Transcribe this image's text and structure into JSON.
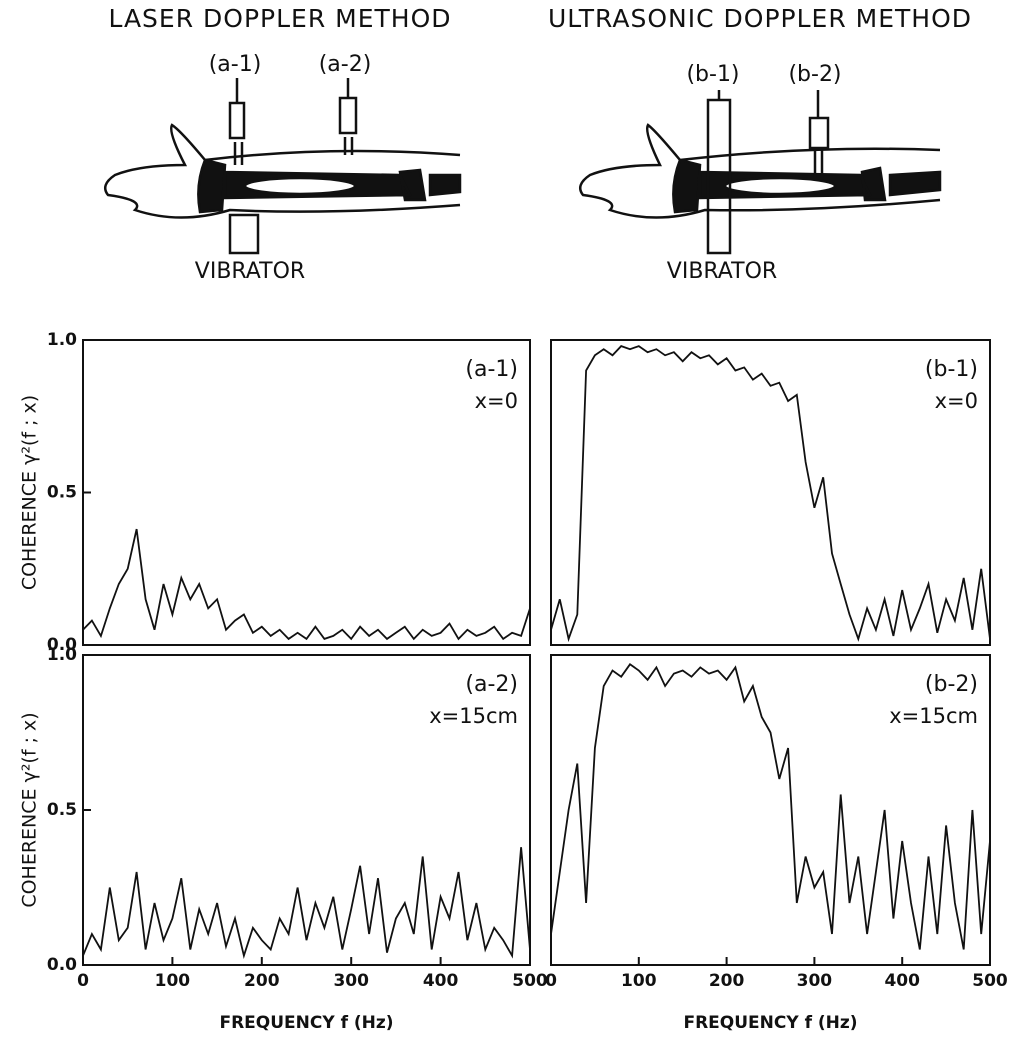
{
  "header": {
    "left_title": "LASER DOPPLER METHOD",
    "right_title": "ULTRASONIC DOPPLER METHOD",
    "left_probes": [
      "(a-1)",
      "(a-2)"
    ],
    "right_probes": [
      "(b-1)",
      "(b-2)"
    ],
    "left_vibrator": "VIBRATOR",
    "right_vibrator": "VIBRATOR"
  },
  "chart_data": [
    {
      "type": "line",
      "label": "(a-1)",
      "annotation": "x=0",
      "ylabel": "COHERENCE  γ²(f ; x)",
      "color": "#111111",
      "xlim": [
        0,
        500
      ],
      "ylim": [
        0,
        1
      ],
      "yticks": [
        {
          "value": 0,
          "label": "0.0"
        },
        {
          "value": 0.5,
          "label": "0.5"
        },
        {
          "value": 1,
          "label": "1.0"
        }
      ],
      "x": [
        0,
        10,
        20,
        30,
        40,
        50,
        60,
        70,
        80,
        90,
        100,
        110,
        120,
        130,
        140,
        150,
        160,
        170,
        180,
        190,
        200,
        210,
        220,
        230,
        240,
        250,
        260,
        270,
        280,
        290,
        300,
        310,
        320,
        330,
        340,
        350,
        360,
        370,
        380,
        390,
        400,
        410,
        420,
        430,
        440,
        450,
        460,
        470,
        480,
        490,
        500
      ],
      "values": [
        0.05,
        0.08,
        0.03,
        0.12,
        0.2,
        0.25,
        0.38,
        0.15,
        0.05,
        0.2,
        0.1,
        0.22,
        0.15,
        0.2,
        0.12,
        0.15,
        0.05,
        0.08,
        0.1,
        0.04,
        0.06,
        0.03,
        0.05,
        0.02,
        0.04,
        0.02,
        0.06,
        0.02,
        0.03,
        0.05,
        0.02,
        0.06,
        0.03,
        0.05,
        0.02,
        0.04,
        0.06,
        0.02,
        0.05,
        0.03,
        0.04,
        0.07,
        0.02,
        0.05,
        0.03,
        0.04,
        0.06,
        0.02,
        0.04,
        0.03,
        0.12
      ]
    },
    {
      "type": "line",
      "label": "(b-1)",
      "annotation": "x=0",
      "color": "#111111",
      "xlim": [
        0,
        500
      ],
      "ylim": [
        0,
        1
      ],
      "x": [
        0,
        10,
        20,
        30,
        40,
        50,
        60,
        70,
        80,
        90,
        100,
        110,
        120,
        130,
        140,
        150,
        160,
        170,
        180,
        190,
        200,
        210,
        220,
        230,
        240,
        250,
        260,
        270,
        280,
        290,
        300,
        310,
        320,
        330,
        340,
        350,
        360,
        370,
        380,
        390,
        400,
        410,
        420,
        430,
        440,
        450,
        460,
        470,
        480,
        490,
        500
      ],
      "values": [
        0.05,
        0.15,
        0.02,
        0.1,
        0.9,
        0.95,
        0.97,
        0.95,
        0.98,
        0.97,
        0.98,
        0.96,
        0.97,
        0.95,
        0.96,
        0.93,
        0.96,
        0.94,
        0.95,
        0.92,
        0.94,
        0.9,
        0.91,
        0.87,
        0.89,
        0.85,
        0.86,
        0.8,
        0.82,
        0.6,
        0.45,
        0.55,
        0.3,
        0.2,
        0.1,
        0.02,
        0.12,
        0.05,
        0.15,
        0.03,
        0.18,
        0.05,
        0.12,
        0.2,
        0.04,
        0.15,
        0.08,
        0.22,
        0.05,
        0.25,
        0.02
      ]
    },
    {
      "type": "line",
      "label": "(a-2)",
      "annotation": "x=15cm",
      "ylabel": "COHERENCE  γ²(f ; x)",
      "xlabel": "FREQUENCY f (Hz)",
      "color": "#111111",
      "xlim": [
        0,
        500
      ],
      "ylim": [
        0,
        1
      ],
      "yticks": [
        {
          "value": 0,
          "label": "0.0"
        },
        {
          "value": 0.5,
          "label": "0.5"
        },
        {
          "value": 1,
          "label": "1.0"
        }
      ],
      "xticks": [
        0,
        100,
        200,
        300,
        400,
        500
      ],
      "x": [
        0,
        10,
        20,
        30,
        40,
        50,
        60,
        70,
        80,
        90,
        100,
        110,
        120,
        130,
        140,
        150,
        160,
        170,
        180,
        190,
        200,
        210,
        220,
        230,
        240,
        250,
        260,
        270,
        280,
        290,
        300,
        310,
        320,
        330,
        340,
        350,
        360,
        370,
        380,
        390,
        400,
        410,
        420,
        430,
        440,
        450,
        460,
        470,
        480,
        490,
        500
      ],
      "values": [
        0.03,
        0.1,
        0.05,
        0.25,
        0.08,
        0.12,
        0.3,
        0.05,
        0.2,
        0.08,
        0.15,
        0.28,
        0.05,
        0.18,
        0.1,
        0.2,
        0.06,
        0.15,
        0.03,
        0.12,
        0.08,
        0.05,
        0.15,
        0.1,
        0.25,
        0.08,
        0.2,
        0.12,
        0.22,
        0.05,
        0.18,
        0.32,
        0.1,
        0.28,
        0.04,
        0.15,
        0.2,
        0.1,
        0.35,
        0.05,
        0.22,
        0.15,
        0.3,
        0.08,
        0.2,
        0.05,
        0.12,
        0.08,
        0.03,
        0.38,
        0.05
      ]
    },
    {
      "type": "line",
      "label": "(b-2)",
      "annotation": "x=15cm",
      "xlabel": "FREQUENCY f (Hz)",
      "color": "#111111",
      "xlim": [
        0,
        500
      ],
      "ylim": [
        0,
        1
      ],
      "xticks": [
        0,
        100,
        200,
        300,
        400,
        500
      ],
      "x": [
        0,
        10,
        20,
        30,
        40,
        50,
        60,
        70,
        80,
        90,
        100,
        110,
        120,
        130,
        140,
        150,
        160,
        170,
        180,
        190,
        200,
        210,
        220,
        230,
        240,
        250,
        260,
        270,
        280,
        290,
        300,
        310,
        320,
        330,
        340,
        350,
        360,
        370,
        380,
        390,
        400,
        410,
        420,
        430,
        440,
        450,
        460,
        470,
        480,
        490,
        500
      ],
      "values": [
        0.1,
        0.3,
        0.5,
        0.65,
        0.2,
        0.7,
        0.9,
        0.95,
        0.93,
        0.97,
        0.95,
        0.92,
        0.96,
        0.9,
        0.94,
        0.95,
        0.93,
        0.96,
        0.94,
        0.95,
        0.92,
        0.96,
        0.85,
        0.9,
        0.8,
        0.75,
        0.6,
        0.7,
        0.2,
        0.35,
        0.25,
        0.3,
        0.1,
        0.55,
        0.2,
        0.35,
        0.1,
        0.3,
        0.5,
        0.15,
        0.4,
        0.2,
        0.05,
        0.35,
        0.1,
        0.45,
        0.2,
        0.05,
        0.5,
        0.1,
        0.4
      ]
    }
  ]
}
